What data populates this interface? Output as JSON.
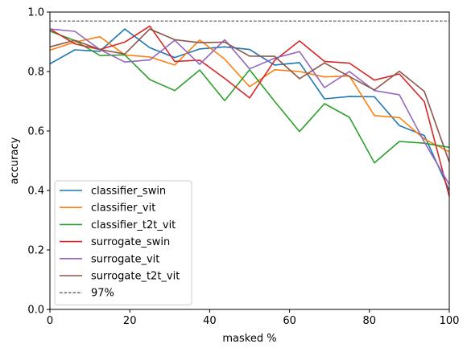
{
  "chart_data": {
    "type": "line",
    "xlabel": "masked %",
    "ylabel": "accuracy",
    "xlim": [
      0,
      100
    ],
    "ylim": [
      0.0,
      1.0
    ],
    "xticks": [
      "0",
      "20",
      "40",
      "60",
      "80",
      "100"
    ],
    "yticks": [
      "0.0",
      "0.2",
      "0.4",
      "0.6",
      "0.8",
      "1.0"
    ],
    "grid": false,
    "legend_position": "lower-left",
    "x": [
      0,
      6.25,
      12.5,
      18.75,
      25,
      31.25,
      37.5,
      43.75,
      50,
      56.25,
      62.5,
      68.75,
      75,
      81.25,
      87.5,
      93.75,
      100
    ],
    "series": [
      {
        "name": "classifier_swin",
        "color": "#1f77b4",
        "values": [
          0.826,
          0.873,
          0.868,
          0.943,
          0.88,
          0.847,
          0.876,
          0.883,
          0.874,
          0.822,
          0.83,
          0.708,
          0.716,
          0.715,
          0.618,
          0.585,
          0.4
        ]
      },
      {
        "name": "classifier_vit",
        "color": "#ff7f0e",
        "values": [
          0.872,
          0.899,
          0.917,
          0.856,
          0.849,
          0.822,
          0.906,
          0.842,
          0.749,
          0.806,
          0.8,
          0.782,
          0.785,
          0.652,
          0.645,
          0.573,
          0.53
        ]
      },
      {
        "name": "classifier_t2t_vit",
        "color": "#2ca02c",
        "values": [
          0.936,
          0.904,
          0.854,
          0.856,
          0.773,
          0.736,
          0.805,
          0.702,
          0.806,
          0.7,
          0.598,
          0.692,
          0.646,
          0.493,
          0.565,
          0.559,
          0.545
        ]
      },
      {
        "name": "surrogate_swin",
        "color": "#d62728",
        "values": [
          0.943,
          0.893,
          0.874,
          0.899,
          0.953,
          0.834,
          0.838,
          0.777,
          0.711,
          0.837,
          0.903,
          0.834,
          0.828,
          0.771,
          0.792,
          0.699,
          0.38
        ]
      },
      {
        "name": "surrogate_vit",
        "color": "#9467bd",
        "values": [
          0.943,
          0.935,
          0.874,
          0.832,
          0.839,
          0.905,
          0.824,
          0.907,
          0.809,
          0.845,
          0.867,
          0.746,
          0.8,
          0.736,
          0.722,
          0.563,
          0.42
        ]
      },
      {
        "name": "surrogate_t2t_vit",
        "color": "#8c564b",
        "values": [
          0.883,
          0.905,
          0.874,
          0.859,
          0.943,
          0.907,
          0.897,
          0.899,
          0.852,
          0.851,
          0.776,
          0.829,
          0.783,
          0.738,
          0.801,
          0.733,
          0.495
        ]
      }
    ],
    "reference_line": {
      "name": "97%",
      "value": 0.97,
      "color": "#000000",
      "style": "dashed"
    }
  }
}
